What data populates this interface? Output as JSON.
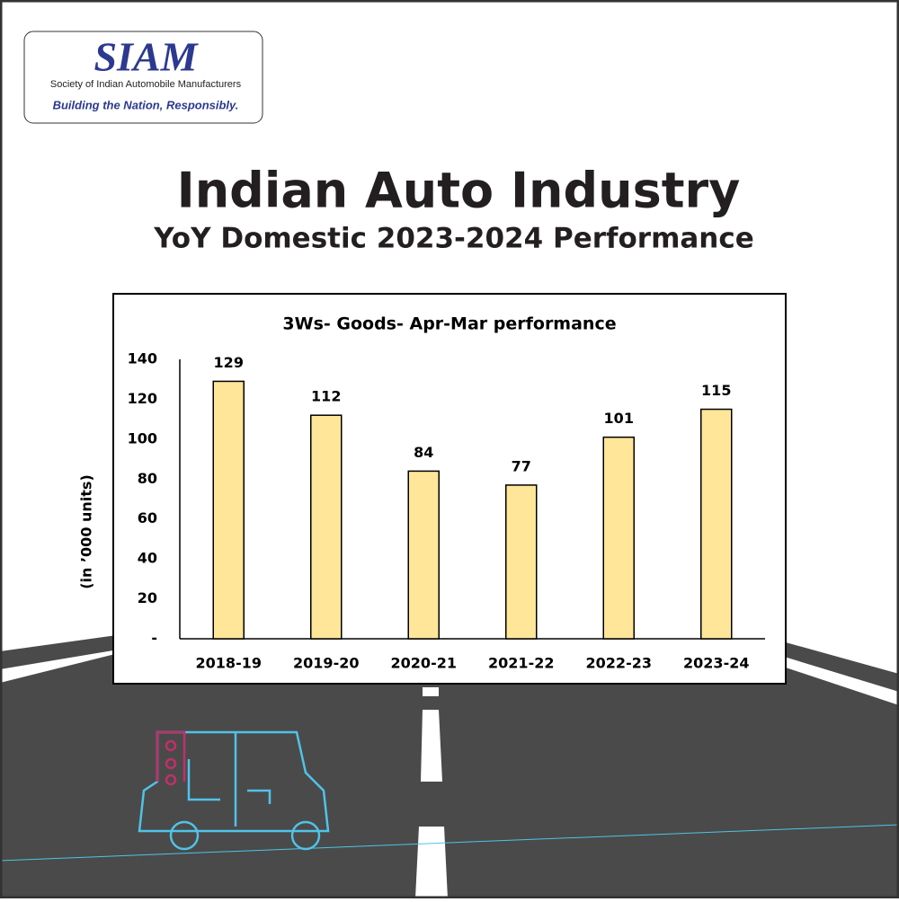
{
  "logo": {
    "name": "SIAM",
    "full_name": "Society of Indian Automobile Manufacturers",
    "tagline": "Building the Nation, Responsibly."
  },
  "header": {
    "title": "Indian Auto Industry",
    "subtitle": "YoY Domestic 2023-2024 Performance"
  },
  "chart_data": {
    "type": "bar",
    "title": "3Ws- Goods- Apr-Mar performance",
    "y_label": "(in ’000 units)",
    "categories": [
      "2018-19",
      "2019-20",
      "2020-21",
      "2021-22",
      "2022-23",
      "2023-24"
    ],
    "values": [
      129,
      112,
      84,
      77,
      101,
      115
    ],
    "color": "#ffe699",
    "ylim": [
      0,
      140
    ],
    "yticks": [
      {
        "value": 0,
        "label": "-"
      },
      20,
      40,
      60,
      80,
      100,
      120,
      140
    ]
  }
}
